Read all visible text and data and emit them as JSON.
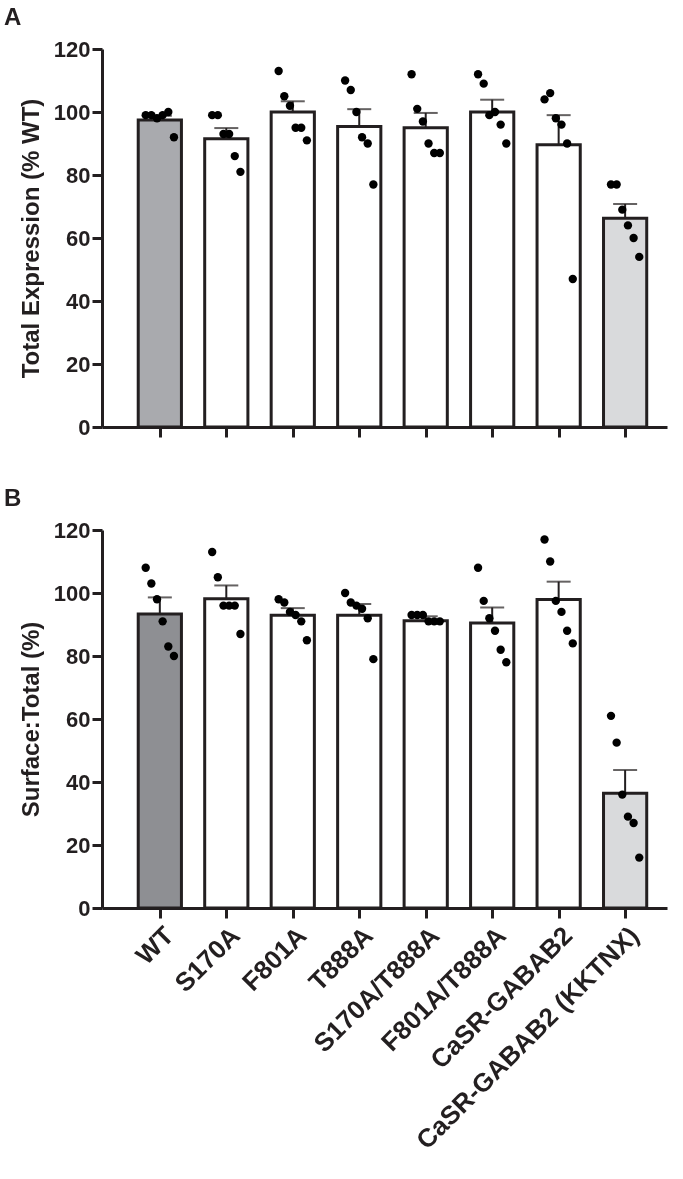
{
  "chart_data": [
    {
      "type": "bar",
      "title": "A",
      "ylabel": "Total Expression (% WT)",
      "categories": [
        "WT",
        "S170A",
        "F801A",
        "T888A",
        "S170A/T888A",
        "F801A/T888A",
        "CaSR-GABAB2",
        "CaSR-GABAB2 (KKTNX)"
      ],
      "series": [
        {
          "type": "bar",
          "colors": [
            "#a9aaae",
            "#ffffff",
            "#ffffff",
            "#ffffff",
            "#ffffff",
            "#ffffff",
            "#ffffff",
            "#d9dadc"
          ],
          "values": [
            97.5,
            91.5,
            100,
            95.4,
            95,
            100,
            89.6,
            66.3
          ],
          "errors": [
            [
              97.5,
              98.8
            ],
            [
              91.5,
              94.9
            ],
            [
              100,
              103.4
            ],
            [
              95.4,
              100.9
            ],
            [
              95,
              99.7
            ],
            [
              100,
              103.9
            ],
            [
              89.6,
              99
            ],
            [
              66.3,
              70.8
            ]
          ]
        },
        {
          "type": "scatter",
          "color": "#000000",
          "x": [
            "WT",
            "WT",
            "WT",
            "WT",
            "WT",
            "WT",
            "S170A",
            "S170A",
            "S170A",
            "S170A",
            "S170A",
            "S170A",
            "F801A",
            "F801A",
            "F801A",
            "F801A",
            "F801A",
            "F801A",
            "T888A",
            "T888A",
            "T888A",
            "T888A",
            "T888A",
            "T888A",
            "S170A/T888A",
            "S170A/T888A",
            "S170A/T888A",
            "S170A/T888A",
            "S170A/T888A",
            "S170A/T888A",
            "F801A/T888A",
            "F801A/T888A",
            "F801A/T888A",
            "F801A/T888A",
            "F801A/T888A",
            "F801A/T888A",
            "CaSR-GABAB2",
            "CaSR-GABAB2",
            "CaSR-GABAB2",
            "CaSR-GABAB2",
            "CaSR-GABAB2",
            "CaSR-GABAB2",
            "CaSR-GABAB2 (KKTNX)",
            "CaSR-GABAB2 (KKTNX)",
            "CaSR-GABAB2 (KKTNX)",
            "CaSR-GABAB2 (KKTNX)",
            "CaSR-GABAB2 (KKTNX)",
            "CaSR-GABAB2 (KKTNX)"
          ],
          "values": [
            99,
            99,
            98,
            99,
            100,
            92,
            99,
            99,
            93,
            93,
            86,
            81,
            113,
            105,
            102,
            95,
            95,
            91,
            110,
            107,
            100,
            92,
            90,
            77,
            112,
            101,
            97,
            90,
            87,
            87,
            112,
            109,
            99,
            100,
            96,
            90,
            104,
            106,
            98,
            96,
            90,
            47,
            77,
            77,
            69,
            64,
            60,
            54
          ]
        }
      ],
      "ylim": [
        0,
        120
      ],
      "yticks": [
        0,
        20,
        40,
        60,
        80,
        100,
        120
      ],
      "tick_labels": "y",
      "grid": false,
      "legend": false,
      "marker": "circle"
    },
    {
      "type": "bar",
      "title": "B",
      "ylabel": "Surface:Total (%)",
      "categories": [
        "WT",
        "S170A",
        "F801A",
        "T888A",
        "S170A/T888A",
        "F801A/T888A",
        "CaSR-GABAB2",
        "CaSR-GABAB2 (KKTNX)"
      ],
      "series": [
        {
          "type": "bar",
          "colors": [
            "#8e8f93",
            "#ffffff",
            "#ffffff",
            "#ffffff",
            "#ffffff",
            "#ffffff",
            "#ffffff",
            "#d9dadc"
          ],
          "values": [
            93.3,
            98.2,
            92.9,
            92.9,
            91.2,
            90.5,
            97.9,
            36.4
          ],
          "errors": [
            [
              93.3,
              98.6
            ],
            [
              98.2,
              102.4
            ],
            [
              92.9,
              95.2
            ],
            [
              92.9,
              96.5
            ],
            [
              91.2,
              92.6
            ],
            [
              90.5,
              95.4
            ],
            [
              97.9,
              103.6
            ],
            [
              36.4,
              43.8
            ]
          ]
        },
        {
          "type": "scatter",
          "color": "#000000",
          "x": [
            "WT",
            "WT",
            "WT",
            "WT",
            "WT",
            "WT",
            "S170A",
            "S170A",
            "S170A",
            "S170A",
            "S170A",
            "S170A",
            "F801A",
            "F801A",
            "F801A",
            "F801A",
            "F801A",
            "F801A",
            "T888A",
            "T888A",
            "T888A",
            "T888A",
            "T888A",
            "T888A",
            "S170A/T888A",
            "S170A/T888A",
            "S170A/T888A",
            "S170A/T888A",
            "S170A/T888A",
            "S170A/T888A",
            "F801A/T888A",
            "F801A/T888A",
            "F801A/T888A",
            "F801A/T888A",
            "F801A/T888A",
            "F801A/T888A",
            "CaSR-GABAB2",
            "CaSR-GABAB2",
            "CaSR-GABAB2",
            "CaSR-GABAB2",
            "CaSR-GABAB2",
            "CaSR-GABAB2",
            "CaSR-GABAB2 (KKTNX)",
            "CaSR-GABAB2 (KKTNX)",
            "CaSR-GABAB2 (KKTNX)",
            "CaSR-GABAB2 (KKTNX)",
            "CaSR-GABAB2 (KKTNX)",
            "CaSR-GABAB2 (KKTNX)"
          ],
          "values": [
            108,
            103,
            98,
            91,
            83,
            80,
            113,
            105,
            96,
            96,
            96,
            87,
            98,
            97,
            94,
            93,
            91,
            85,
            100,
            97,
            96,
            95,
            92,
            79,
            93,
            93,
            93,
            91,
            91,
            91,
            108,
            97.5,
            92,
            88,
            82,
            78,
            117,
            110,
            97.5,
            94,
            88,
            84,
            61,
            52.5,
            36,
            29,
            27,
            16
          ]
        }
      ],
      "ylim": [
        0,
        120
      ],
      "yticks": [
        0,
        20,
        40,
        60,
        80,
        100,
        120
      ],
      "grid": false,
      "legend": false,
      "marker": "circle"
    }
  ]
}
